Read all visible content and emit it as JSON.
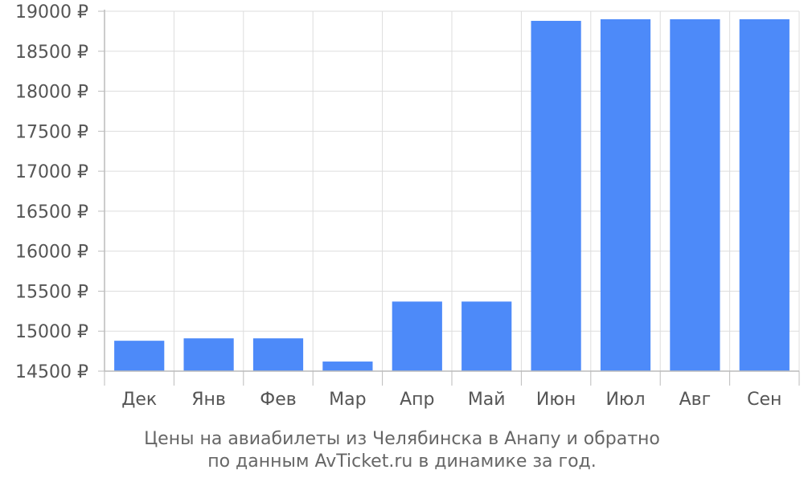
{
  "chart_data": {
    "type": "bar",
    "categories": [
      "Дек",
      "Янв",
      "Фев",
      "Мар",
      "Апр",
      "Май",
      "Июн",
      "Июл",
      "Авг",
      "Сен"
    ],
    "values": [
      14880,
      14910,
      14910,
      14620,
      15370,
      15370,
      18880,
      18900,
      18900,
      18900
    ],
    "ylim": [
      14500,
      19000
    ],
    "yticks": [
      14500,
      15000,
      15500,
      16000,
      16500,
      17000,
      17500,
      18000,
      18500,
      19000
    ],
    "ytick_labels": [
      "14500 ₽",
      "15000 ₽",
      "15500 ₽",
      "16000 ₽",
      "16500 ₽",
      "17000 ₽",
      "17500 ₽",
      "18000 ₽",
      "18500 ₽",
      "19000 ₽"
    ],
    "grid": true,
    "bar_color": "#4d8af9"
  },
  "caption": {
    "line1": "Цены на авиабилеты из Челябинска в Анапу и обратно",
    "line2": "по данным AvTicket.ru в динамике за год."
  }
}
